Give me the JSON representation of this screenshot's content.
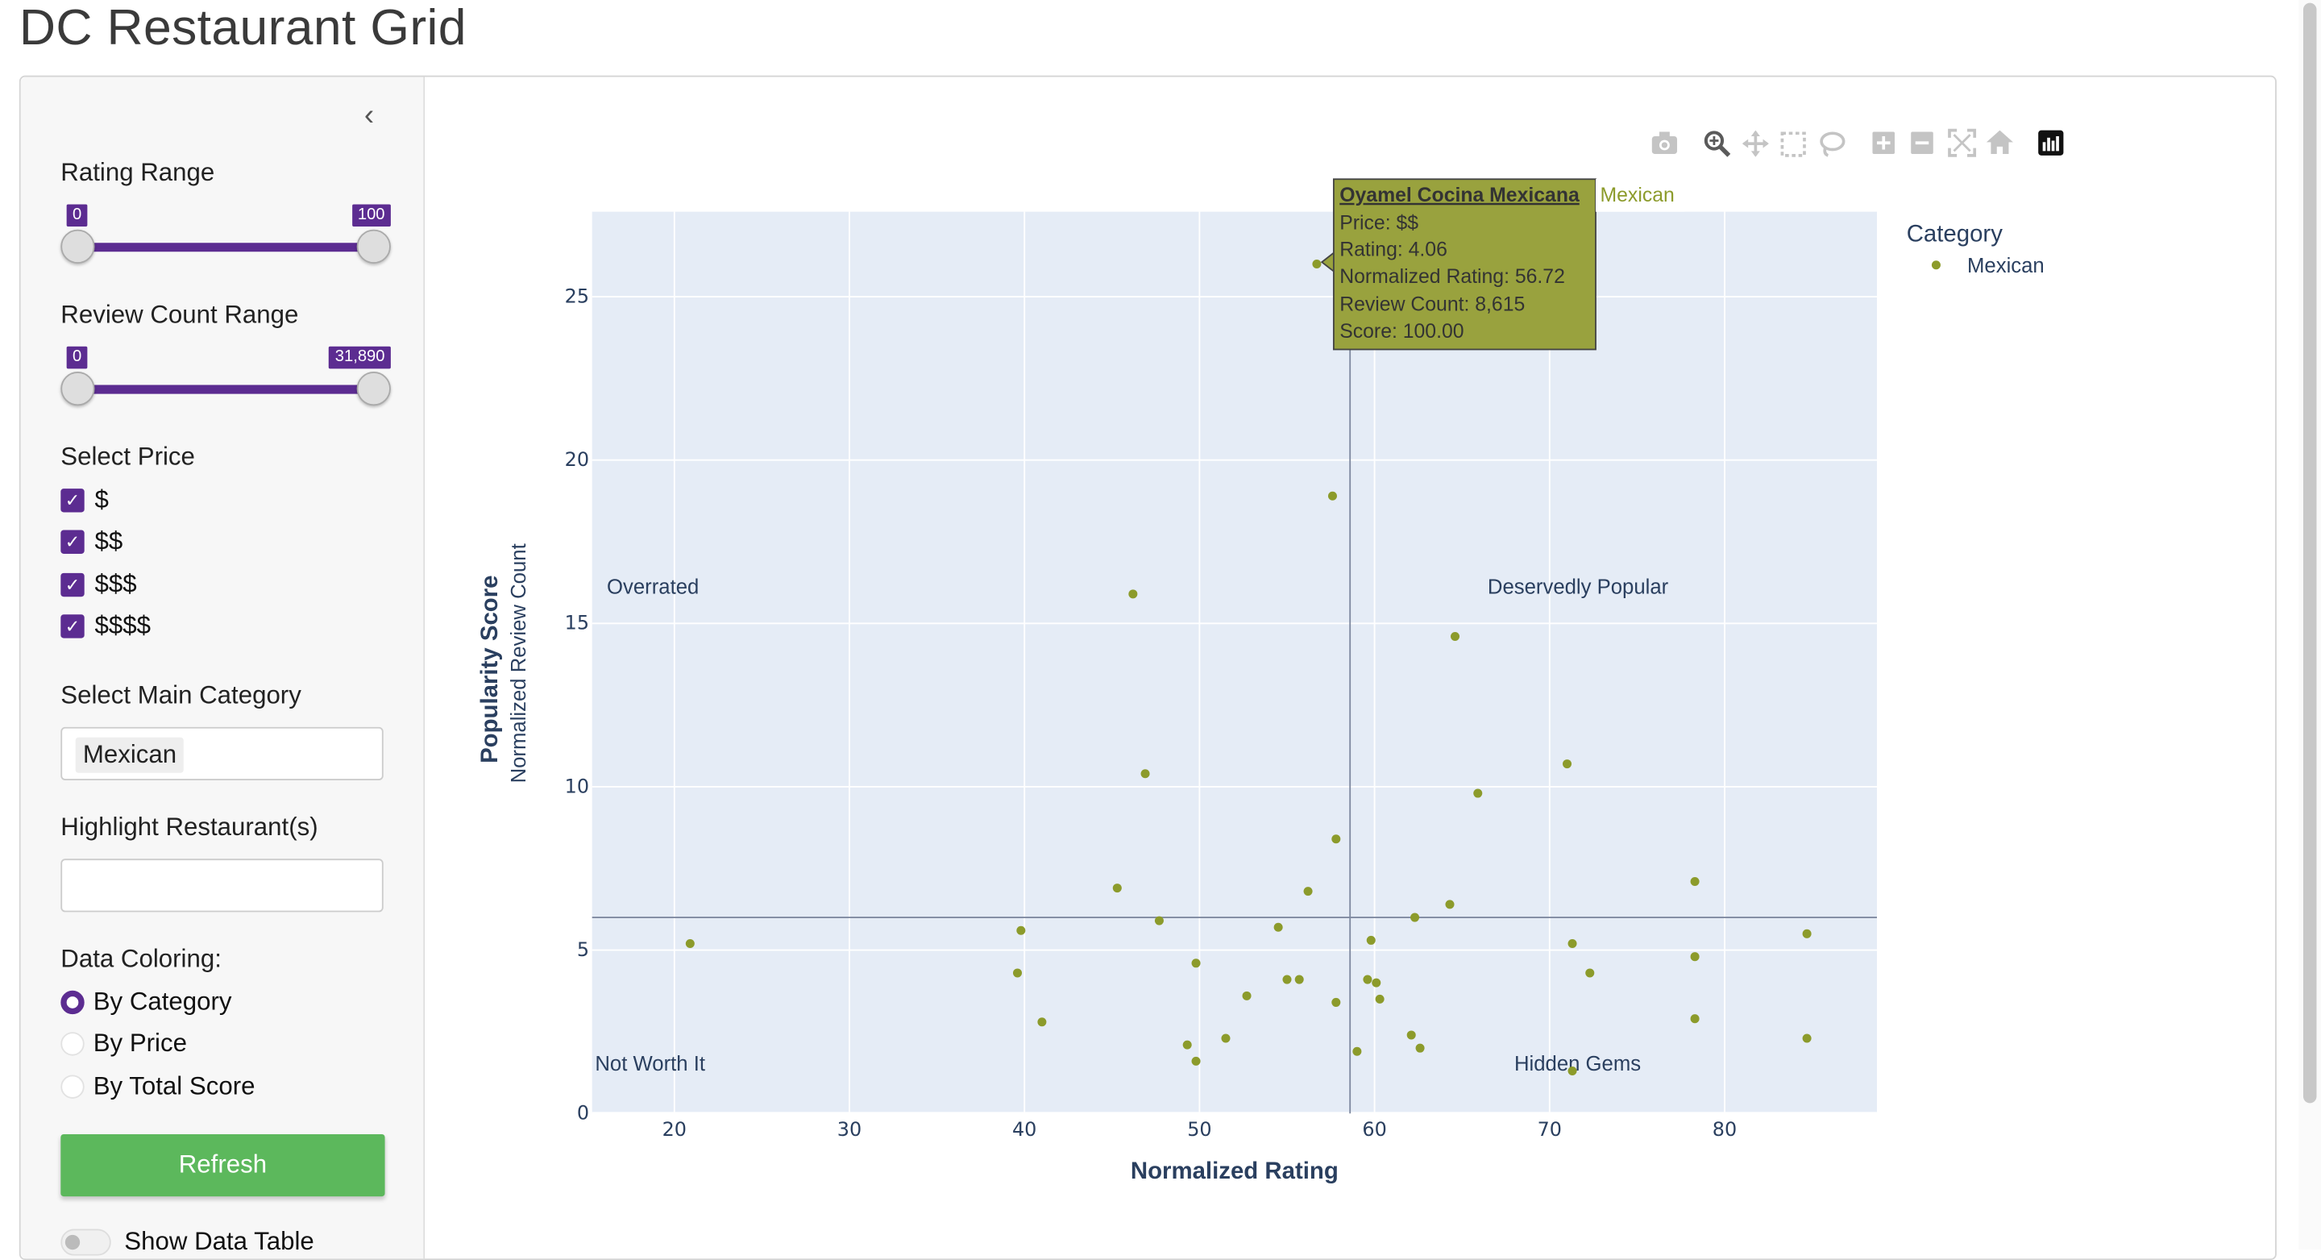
{
  "page": {
    "title": "DC Restaurant Grid"
  },
  "sidebar": {
    "collapse_glyph": "‹",
    "rating_range": {
      "label": "Rating Range",
      "min": 0,
      "max": 100,
      "min_label": "0",
      "max_label": "100"
    },
    "review_count_range": {
      "label": "Review Count Range",
      "min": 0,
      "max": 31890,
      "min_label": "0",
      "max_label": "31,890"
    },
    "price": {
      "label": "Select Price",
      "options": [
        {
          "label": "$",
          "checked": true
        },
        {
          "label": "$$",
          "checked": true
        },
        {
          "label": "$$$",
          "checked": true
        },
        {
          "label": "$$$$",
          "checked": true
        }
      ]
    },
    "main_category": {
      "label": "Select Main Category",
      "selected": "Mexican"
    },
    "highlight": {
      "label": "Highlight Restaurant(s)",
      "value": ""
    },
    "data_coloring": {
      "label": "Data Coloring:",
      "options": [
        {
          "label": "By Category",
          "selected": true
        },
        {
          "label": "By Price",
          "selected": false
        },
        {
          "label": "By Total Score",
          "selected": false
        }
      ]
    },
    "refresh_label": "Refresh",
    "show_table_label": "Show Data Table"
  },
  "colors": {
    "accent": "#5c2c91",
    "mexican": "#8c9b2b",
    "refresh": "#5cb85c",
    "plot_bg": "#e5ecf6"
  },
  "modebar": [
    "camera-icon",
    "zoom-icon",
    "pan-icon",
    "box-select-icon",
    "lasso-icon",
    "zoom-in-icon",
    "zoom-out-icon",
    "autoscale-icon",
    "reset-axes-icon",
    "plotly-logo-icon"
  ],
  "chart_data": {
    "type": "scatter",
    "xlabel": "Normalized Rating",
    "ylabel": "Popularity Score",
    "ylabel_sub": "Normalized Review Count",
    "xlim": [
      15.3,
      88.7
    ],
    "ylim": [
      0,
      27.6
    ],
    "xticks": [
      20,
      30,
      40,
      50,
      60,
      70,
      80
    ],
    "yticks": [
      0,
      5,
      10,
      15,
      20,
      25
    ],
    "grid": true,
    "quadrant_lines": {
      "x": 58.6,
      "y": 6.0
    },
    "quadrant_labels": {
      "top_left": "Overrated",
      "top_right": "Deservedly Popular",
      "bottom_left": "Not Worth It",
      "bottom_right": "Hidden Gems"
    },
    "legend": {
      "title": "Category",
      "position": "right"
    },
    "series": [
      {
        "name": "Mexican",
        "x": [
          56.7,
          57.6,
          46.2,
          64.6,
          46.9,
          71.0,
          65.9,
          57.8,
          45.3,
          56.2,
          64.3,
          47.7,
          62.3,
          54.5,
          59.8,
          39.8,
          71.3,
          84.7,
          78.3,
          20.9,
          39.6,
          49.8,
          72.3,
          78.3,
          55.0,
          55.7,
          59.6,
          60.1,
          52.7,
          60.3,
          57.8,
          41.0,
          78.3,
          62.1,
          51.5,
          84.7,
          49.3,
          62.6,
          59.0,
          49.8,
          71.3
        ],
        "y": [
          26.0,
          18.9,
          15.9,
          14.6,
          10.4,
          10.7,
          9.8,
          8.4,
          6.9,
          6.8,
          6.4,
          5.9,
          6.0,
          5.7,
          5.3,
          5.6,
          5.2,
          5.5,
          7.1,
          5.2,
          4.3,
          4.6,
          4.3,
          4.8,
          4.1,
          4.1,
          4.1,
          4.0,
          3.6,
          3.5,
          3.4,
          2.8,
          2.9,
          2.4,
          2.3,
          2.3,
          2.1,
          2.0,
          1.9,
          1.6,
          1.3
        ]
      }
    ],
    "hover": {
      "name": "Oyamel Cocina Mexicana",
      "category": "Mexican",
      "price": "Price: $$",
      "rating": "Rating: 4.06",
      "normalized_rating": "Normalized Rating: 56.72",
      "review_count": "Review Count: 8,615",
      "score": "Score: 100.00"
    }
  }
}
